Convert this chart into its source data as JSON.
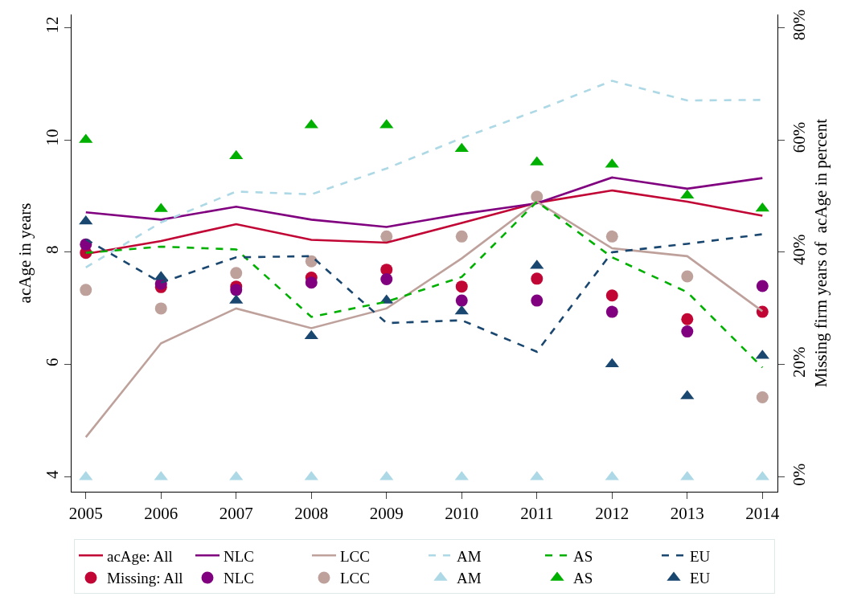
{
  "chart_data": {
    "type": "line",
    "ylabel": "acAge in years",
    "y2label": "Missing firm years of  acAge in percent",
    "x": [
      2005,
      2006,
      2007,
      2008,
      2009,
      2010,
      2011,
      2012,
      2013,
      2014
    ],
    "xlim": [
      2004.81,
      2014.2
    ],
    "xticks": [
      2005,
      2006,
      2007,
      2008,
      2009,
      2010,
      2011,
      2012,
      2013,
      2014
    ],
    "ylim": [
      3.74,
      12.23
    ],
    "yticks": [
      4,
      6,
      8,
      10,
      12
    ],
    "y2lim": [
      -2.6,
      82.3
    ],
    "y2ticks": [
      {
        "value": 0,
        "label": "0%"
      },
      {
        "value": 20,
        "label": "20%"
      },
      {
        "value": 40,
        "label": "40%"
      },
      {
        "value": 60,
        "label": "60%"
      },
      {
        "value": 80,
        "label": "80%"
      }
    ],
    "grid": false,
    "legend": "bottom",
    "series": [
      {
        "name": "acAge: All",
        "line_style": "solid",
        "marker": "none",
        "color": "#c10534",
        "values": [
          7.97,
          8.2,
          8.5,
          8.22,
          8.17,
          8.52,
          8.88,
          9.1,
          8.9,
          8.65
        ]
      },
      {
        "name": "NLC",
        "line_style": "solid",
        "marker": "none",
        "color": "#800080",
        "values": [
          8.71,
          8.58,
          8.81,
          8.58,
          8.45,
          8.68,
          8.87,
          9.33,
          9.13,
          9.32
        ]
      },
      {
        "name": "LCC",
        "line_style": "solid",
        "marker": "none",
        "color": "#bfa19c",
        "values": [
          4.71,
          6.38,
          7.0,
          6.65,
          7.0,
          7.89,
          8.9,
          8.07,
          7.93,
          6.95
        ]
      },
      {
        "name": "AM",
        "line_style": "dashed",
        "marker": "none",
        "color": "#add8e6",
        "values": [
          7.73,
          8.53,
          9.08,
          9.03,
          9.49,
          10.03,
          10.52,
          11.05,
          10.7,
          10.71
        ]
      },
      {
        "name": "AS",
        "line_style": "dashed",
        "marker": "none",
        "color": "#00b000",
        "values": [
          7.99,
          8.1,
          8.05,
          6.85,
          7.12,
          7.56,
          8.9,
          7.91,
          7.29,
          5.95
        ]
      },
      {
        "name": "EU",
        "line_style": "dashed",
        "marker": "none",
        "color": "#1a476f",
        "values": [
          8.23,
          7.46,
          7.91,
          7.93,
          6.74,
          6.79,
          6.23,
          8.0,
          8.15,
          8.32
        ]
      },
      {
        "name": "Missing: All",
        "type": "scatter",
        "axis": "y2",
        "marker": "circle",
        "color": "#c10534",
        "values": [
          39.9,
          33.8,
          33.9,
          35.5,
          36.9,
          33.9,
          35.3,
          32.3,
          28.1,
          29.4
        ]
      },
      {
        "name": "NLC",
        "type": "scatter",
        "axis": "y2",
        "marker": "circle",
        "color": "#800080",
        "values": [
          41.4,
          34.4,
          33.3,
          34.6,
          35.2,
          31.4,
          31.4,
          29.4,
          25.9,
          34.0
        ]
      },
      {
        "name": "LCC",
        "type": "scatter",
        "axis": "y2",
        "marker": "circle",
        "color": "#bfa19c",
        "values": [
          33.3,
          30.0,
          36.3,
          38.4,
          42.8,
          42.8,
          49.9,
          42.8,
          35.7,
          14.2
        ]
      },
      {
        "name": "AM",
        "type": "scatter",
        "axis": "y2",
        "marker": "triangle",
        "color": "#add8e6",
        "values": [
          0,
          0,
          0,
          0,
          0,
          0,
          0,
          0,
          0,
          0
        ]
      },
      {
        "name": "AS",
        "type": "scatter",
        "axis": "y2",
        "marker": "triangle",
        "color": "#00b000",
        "values": [
          60.0,
          47.7,
          57.1,
          62.6,
          62.6,
          58.4,
          56.0,
          55.6,
          50.1,
          47.8
        ]
      },
      {
        "name": "EU",
        "type": "scatter",
        "axis": "y2",
        "marker": "triangle",
        "color": "#1a476f",
        "values": [
          45.5,
          35.6,
          31.4,
          25.1,
          31.4,
          29.5,
          37.6,
          20.1,
          14.4,
          21.6
        ]
      }
    ]
  }
}
